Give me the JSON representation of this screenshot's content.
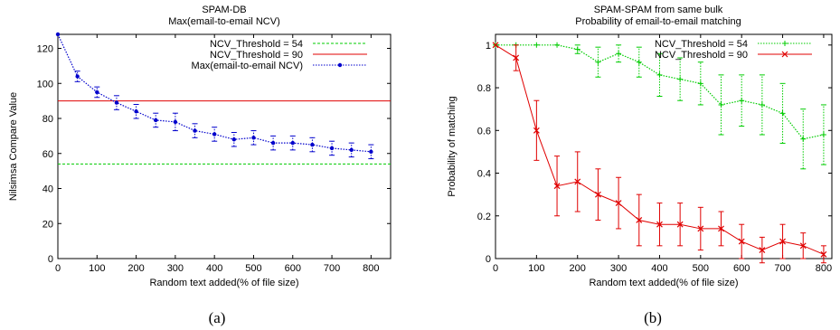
{
  "chart_data": [
    {
      "type": "line",
      "title": "SPAM-DB",
      "subtitle": "Max(email-to-email NCV)",
      "xlabel": "Random text added(% of file size)",
      "ylabel": "Nilsimsa Compare Value",
      "caption": "(a)",
      "xlim": [
        0,
        850
      ],
      "ylim": [
        0,
        128
      ],
      "xticks": [
        0,
        100,
        200,
        300,
        400,
        500,
        600,
        700,
        800
      ],
      "yticks": [
        0,
        20,
        40,
        60,
        80,
        100,
        120
      ],
      "legend_position": "top-right",
      "x": [
        0,
        50,
        100,
        150,
        200,
        250,
        300,
        350,
        400,
        450,
        500,
        550,
        600,
        650,
        700,
        750,
        800
      ],
      "series": [
        {
          "name": "NCV_Threshold = 54",
          "style": "hline",
          "color": "#00cc00",
          "dash": "dashed",
          "y": 54
        },
        {
          "name": "NCV_Threshold = 90",
          "style": "hline",
          "color": "#e00000",
          "dash": "solid",
          "y": 90
        },
        {
          "name": "Max(email-to-email NCV)",
          "style": "errorline",
          "color": "#0000cc",
          "dash": "dotted",
          "marker": "dot",
          "values": [
            128,
            104,
            95,
            89,
            84,
            79,
            78,
            73,
            71,
            68,
            69,
            66,
            66,
            65,
            63,
            62,
            61
          ],
          "errors": [
            0,
            3,
            3,
            4,
            4,
            4,
            5,
            4,
            4,
            4,
            4,
            4,
            4,
            4,
            4,
            4,
            4
          ]
        }
      ]
    },
    {
      "type": "line",
      "title": "SPAM-SPAM from same bulk",
      "subtitle": "Probability of email-to-email matching",
      "xlabel": "Random text added(% of file size)",
      "ylabel": "Probability of matching",
      "caption": "(b)",
      "xlim": [
        0,
        820
      ],
      "ylim": [
        0,
        1.05
      ],
      "xticks": [
        0,
        100,
        200,
        300,
        400,
        500,
        600,
        700,
        800
      ],
      "yticks": [
        0,
        0.2,
        0.4,
        0.6,
        0.8,
        1
      ],
      "legend_position": "top-right",
      "x": [
        0,
        50,
        100,
        150,
        200,
        250,
        300,
        350,
        400,
        450,
        500,
        550,
        600,
        650,
        700,
        750,
        800
      ],
      "series": [
        {
          "name": "NCV_Threshold = 54",
          "style": "errorline",
          "color": "#00cc00",
          "dash": "dotted",
          "marker": "plus",
          "values": [
            1,
            1,
            1,
            1,
            0.98,
            0.92,
            0.96,
            0.92,
            0.86,
            0.84,
            0.82,
            0.72,
            0.74,
            0.72,
            0.68,
            0.56,
            0.58
          ],
          "errors": [
            0,
            0,
            0,
            0,
            0.02,
            0.07,
            0.04,
            0.07,
            0.1,
            0.1,
            0.1,
            0.14,
            0.12,
            0.14,
            0.14,
            0.14,
            0.14
          ]
        },
        {
          "name": "NCV_Threshold = 90",
          "style": "errorline",
          "color": "#e00000",
          "dash": "solid",
          "marker": "cross",
          "values": [
            1,
            0.94,
            0.6,
            0.34,
            0.36,
            0.3,
            0.26,
            0.18,
            0.16,
            0.16,
            0.14,
            0.14,
            0.08,
            0.04,
            0.08,
            0.06,
            0.02
          ],
          "errors": [
            0,
            0.06,
            0.14,
            0.14,
            0.14,
            0.12,
            0.12,
            0.12,
            0.1,
            0.1,
            0.1,
            0.08,
            0.08,
            0.06,
            0.08,
            0.06,
            0.04
          ]
        }
      ]
    }
  ]
}
